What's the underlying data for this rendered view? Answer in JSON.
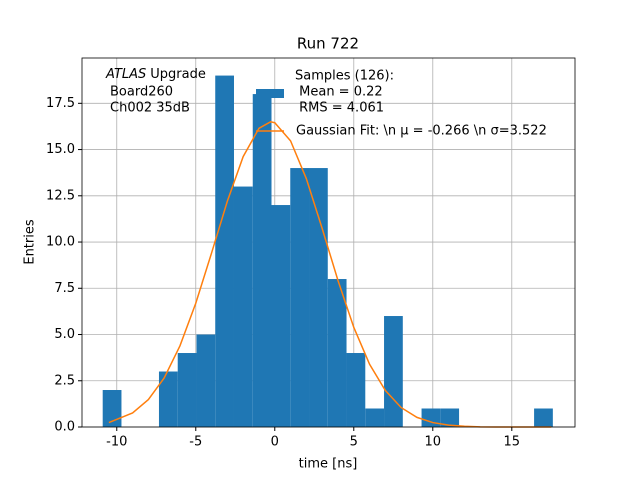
{
  "chart_data": {
    "type": "hist",
    "title": "Run 722",
    "xlabel": "time [ns]",
    "ylabel": "Entries",
    "annotation_italic": "ATLAS",
    "annotation_lines": [
      "Upgrade",
      "Board260",
      "Ch002 35dB"
    ],
    "bins": [
      -10.89,
      -9.703,
      -8.516,
      -7.329,
      -6.142,
      -4.955,
      -3.768,
      -2.581,
      -1.394,
      -0.207,
      0.98,
      2.167,
      3.354,
      4.541,
      5.728,
      6.915,
      8.102,
      9.289,
      10.476,
      11.663,
      12.85,
      14.037,
      15.224,
      16.411,
      17.598
    ],
    "counts": [
      2,
      0,
      0,
      3,
      4,
      5,
      19,
      13,
      18,
      12,
      14,
      14,
      8,
      4,
      1,
      6,
      0,
      1,
      1,
      0,
      0,
      0,
      0,
      1
    ],
    "color": "#1f77b4",
    "hist_legend": [
      "Samples (126):",
      " Mean = 0.22",
      " RMS = 4.061"
    ],
    "series": [
      {
        "name": "Gaussian Fit: \\n μ = -0.266 \\n σ=3.522",
        "color": "#ff7f0e",
        "x": [
          -10.5,
          -9,
          -8,
          -7,
          -6,
          -5,
          -4,
          -3,
          -2,
          -1,
          -0.266,
          0,
          1,
          2,
          3,
          4,
          5,
          6,
          7,
          8,
          9,
          10,
          11,
          12,
          13,
          14,
          16,
          17.5
        ],
        "values": [
          0.24,
          0.76,
          1.48,
          2.65,
          4.39,
          6.69,
          9.41,
          12.21,
          14.62,
          16.15,
          16.5,
          16.45,
          15.47,
          13.42,
          10.73,
          7.92,
          5.39,
          3.39,
          1.97,
          1.05,
          0.52,
          0.24,
          0.1,
          0.04,
          0.01,
          0,
          0,
          0
        ]
      }
    ],
    "xlim": [
      -12.2,
      19.0
    ],
    "ylim": [
      0,
      19.95
    ],
    "xticks": [
      -10,
      -5,
      0,
      5,
      10,
      15
    ],
    "yticks": [
      {
        "value": 0,
        "label": "0.0"
      },
      2.5,
      {
        "value": 5,
        "label": "5.0"
      },
      7.5,
      {
        "value": 10,
        "label": "10.0"
      },
      12.5,
      {
        "value": 15,
        "label": "15.0"
      },
      17.5
    ],
    "grid": true
  }
}
